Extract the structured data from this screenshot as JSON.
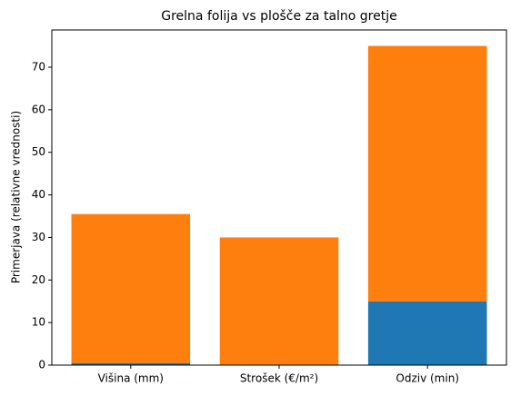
{
  "chart_data": {
    "type": "bar",
    "stacked": true,
    "title": "Grelna folija vs plošče za talno gretje",
    "ylabel": "Primerjava (relativne vrednosti)",
    "categories": [
      "Višina (mm)",
      "Strošek (€/m²)",
      "Odziv (min)"
    ],
    "series": [
      {
        "color": "#1f77b4",
        "values": [
          0.5,
          0,
          15
        ]
      },
      {
        "color": "#ff7f0e",
        "values": [
          35,
          30,
          60
        ]
      }
    ],
    "ylim": [
      0,
      78.75
    ],
    "yticks": [
      0,
      10,
      20,
      30,
      40,
      50,
      60,
      70
    ],
    "grid": false
  }
}
